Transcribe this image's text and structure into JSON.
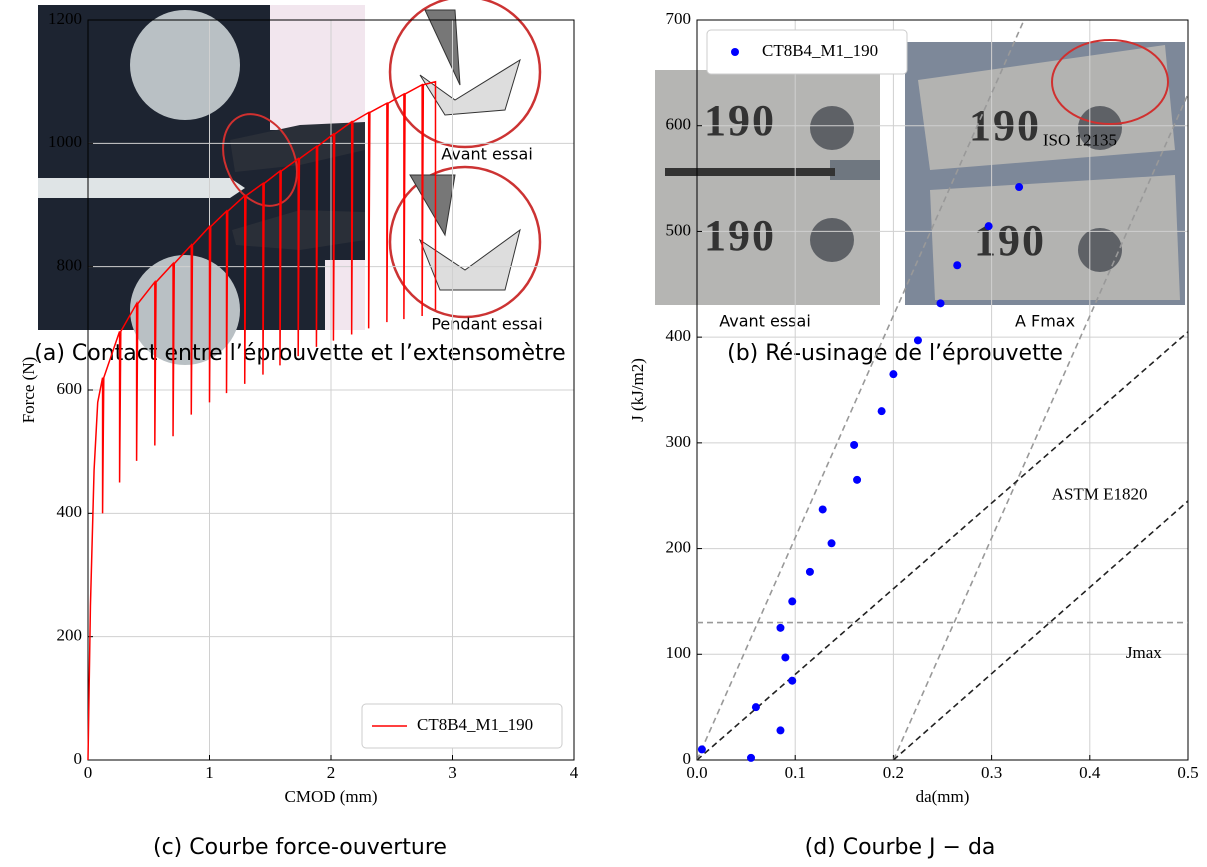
{
  "photos": {
    "a": {
      "labels": [
        "Avant essai",
        "Pendant essai"
      ],
      "caption": "(a) Contact entre l’éprouvette et l’extensomètre"
    },
    "b": {
      "engravings": [
        "190",
        "190",
        "190",
        "190"
      ],
      "labels": [
        "Avant essai",
        "A Fmax"
      ],
      "caption": "(b) Ré-usinage de l’éprouvette"
    }
  },
  "chart_data": [
    {
      "type": "line",
      "caption": "(c) Courbe force-ouverture",
      "xlabel": "CMOD (mm)",
      "ylabel": "Force (N)",
      "xlim": [
        0,
        4
      ],
      "xticks": [
        0,
        1,
        2,
        3,
        4
      ],
      "ylim": [
        0,
        1200
      ],
      "yticks": [
        0,
        200,
        400,
        600,
        800,
        1000,
        1200
      ],
      "grid": true,
      "legend": "lower right",
      "series": [
        {
          "name": "CT8B4_M1_190",
          "color": "#ff0000",
          "x": [
            0,
            0.02,
            0.05,
            0.08,
            0.12,
            0.12,
            0.13,
            0.26,
            0.26,
            0.27,
            0.4,
            0.4,
            0.41,
            0.55,
            0.55,
            0.56,
            0.7,
            0.7,
            0.71,
            0.85,
            0.85,
            0.86,
            1,
            1,
            1.01,
            1.14,
            1.14,
            1.15,
            1.29,
            1.29,
            1.3,
            1.44,
            1.44,
            1.45,
            1.58,
            1.58,
            1.59,
            1.73,
            1.73,
            1.74,
            1.88,
            1.88,
            1.89,
            2.02,
            2.02,
            2.03,
            2.17,
            2.17,
            2.18,
            2.31,
            2.31,
            2.32,
            2.46,
            2.46,
            2.47,
            2.6,
            2.6,
            2.61,
            2.75,
            2.75,
            2.76,
            2.86,
            2.86
          ],
          "values": [
            0,
            250,
            470,
            580,
            620,
            400,
            620,
            695,
            450,
            695,
            740,
            485,
            740,
            775,
            510,
            775,
            805,
            525,
            805,
            835,
            560,
            835,
            865,
            580,
            865,
            890,
            595,
            890,
            915,
            610,
            915,
            935,
            625,
            935,
            955,
            640,
            955,
            975,
            655,
            975,
            995,
            670,
            995,
            1015,
            680,
            1015,
            1035,
            690,
            1035,
            1050,
            700,
            1050,
            1065,
            710,
            1065,
            1080,
            715,
            1080,
            1095,
            720,
            1095,
            1100,
            730
          ]
        }
      ]
    },
    {
      "type": "scatter",
      "caption": "(d) Courbe J − da",
      "xlabel": "da(mm)",
      "ylabel": "J (kJ/m2)",
      "xlim": [
        0,
        0.5
      ],
      "xticks": [
        {
          "value": 0,
          "label": "0.0"
        },
        0.1,
        0.2,
        0.3,
        0.4,
        0.5
      ],
      "ylim": [
        0,
        700
      ],
      "yticks": [
        0,
        100,
        200,
        300,
        400,
        500,
        600,
        700
      ],
      "grid": true,
      "legend": "upper left",
      "series": [
        {
          "name": "CT8B4_M1_190",
          "color": "#0000ff",
          "x": [
            0.005,
            0.055,
            0.06,
            0.085,
            0.085,
            0.09,
            0.097,
            0.097,
            0.115,
            0.128,
            0.137,
            0.16,
            0.163,
            0.188,
            0.2,
            0.225,
            0.248,
            0.265,
            0.297,
            0.328
          ],
          "values": [
            10,
            2,
            50,
            28,
            125,
            97,
            75,
            150,
            178,
            237,
            205,
            298,
            265,
            330,
            365,
            397,
            432,
            468,
            505,
            542
          ]
        }
      ],
      "reference_lines": [
        {
          "color": "#999999",
          "x": [
            0,
            0.333
          ],
          "values": [
            0,
            700
          ]
        },
        {
          "color": "#999999",
          "x": [
            0.2,
            0.5
          ],
          "values": [
            0,
            630
          ]
        },
        {
          "color": "#222222",
          "x": [
            0,
            0.5
          ],
          "values": [
            0,
            405
          ]
        },
        {
          "color": "#222222",
          "x": [
            0.2,
            0.5
          ],
          "values": [
            0,
            245
          ]
        },
        {
          "color": "#999999",
          "x": [
            0,
            0.5
          ],
          "values": [
            130,
            130
          ]
        }
      ],
      "annotations": [
        {
          "text": "ISO 12135",
          "x": 0.39,
          "y": 585
        },
        {
          "text": "ASTM E1820",
          "x": 0.41,
          "y": 250
        },
        {
          "text": "Jmax",
          "x": 0.455,
          "y": 100
        }
      ]
    }
  ]
}
